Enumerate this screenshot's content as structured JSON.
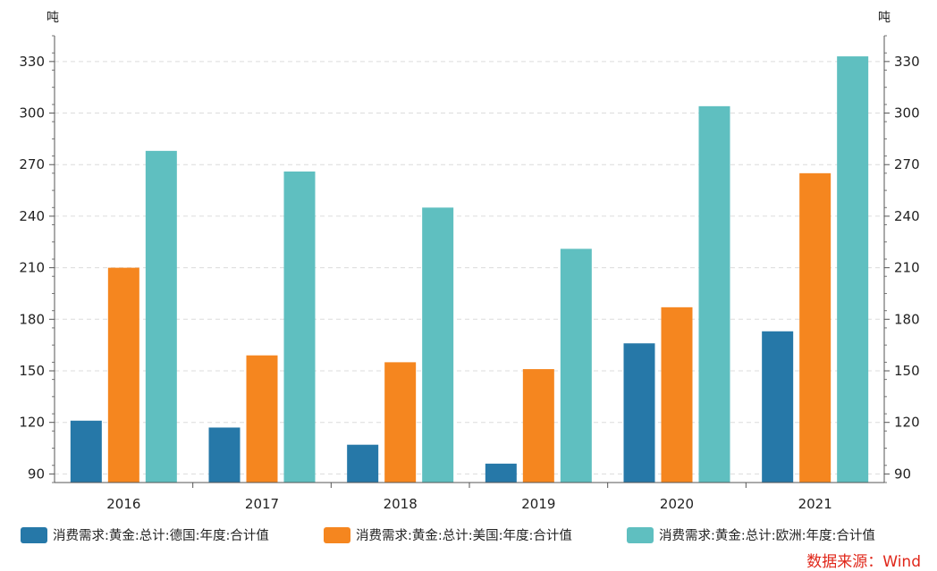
{
  "chart_data": {
    "type": "bar",
    "categories": [
      "2016",
      "2017",
      "2018",
      "2019",
      "2020",
      "2021"
    ],
    "series": [
      {
        "name": "消费需求:黄金:总计:德国:年度:合计值",
        "color": "#2678a8",
        "values": [
          121,
          117,
          107,
          96,
          166,
          173
        ]
      },
      {
        "name": "消费需求:黄金:总计:美国:年度:合计值",
        "color": "#f5861f",
        "values": [
          210,
          159,
          155,
          151,
          187,
          265
        ]
      },
      {
        "name": "消费需求:黄金:总计:欧洲:年度:合计值",
        "color": "#5fbfc0",
        "values": [
          278,
          266,
          245,
          221,
          304,
          333
        ]
      }
    ],
    "y_unit_left": "吨",
    "y_unit_right": "吨",
    "ylim": [
      85,
      345
    ],
    "yticks": [
      90,
      120,
      150,
      180,
      210,
      240,
      270,
      300,
      330
    ],
    "grid": true,
    "legend_position": "bottom"
  },
  "source": "数据来源：Wind"
}
